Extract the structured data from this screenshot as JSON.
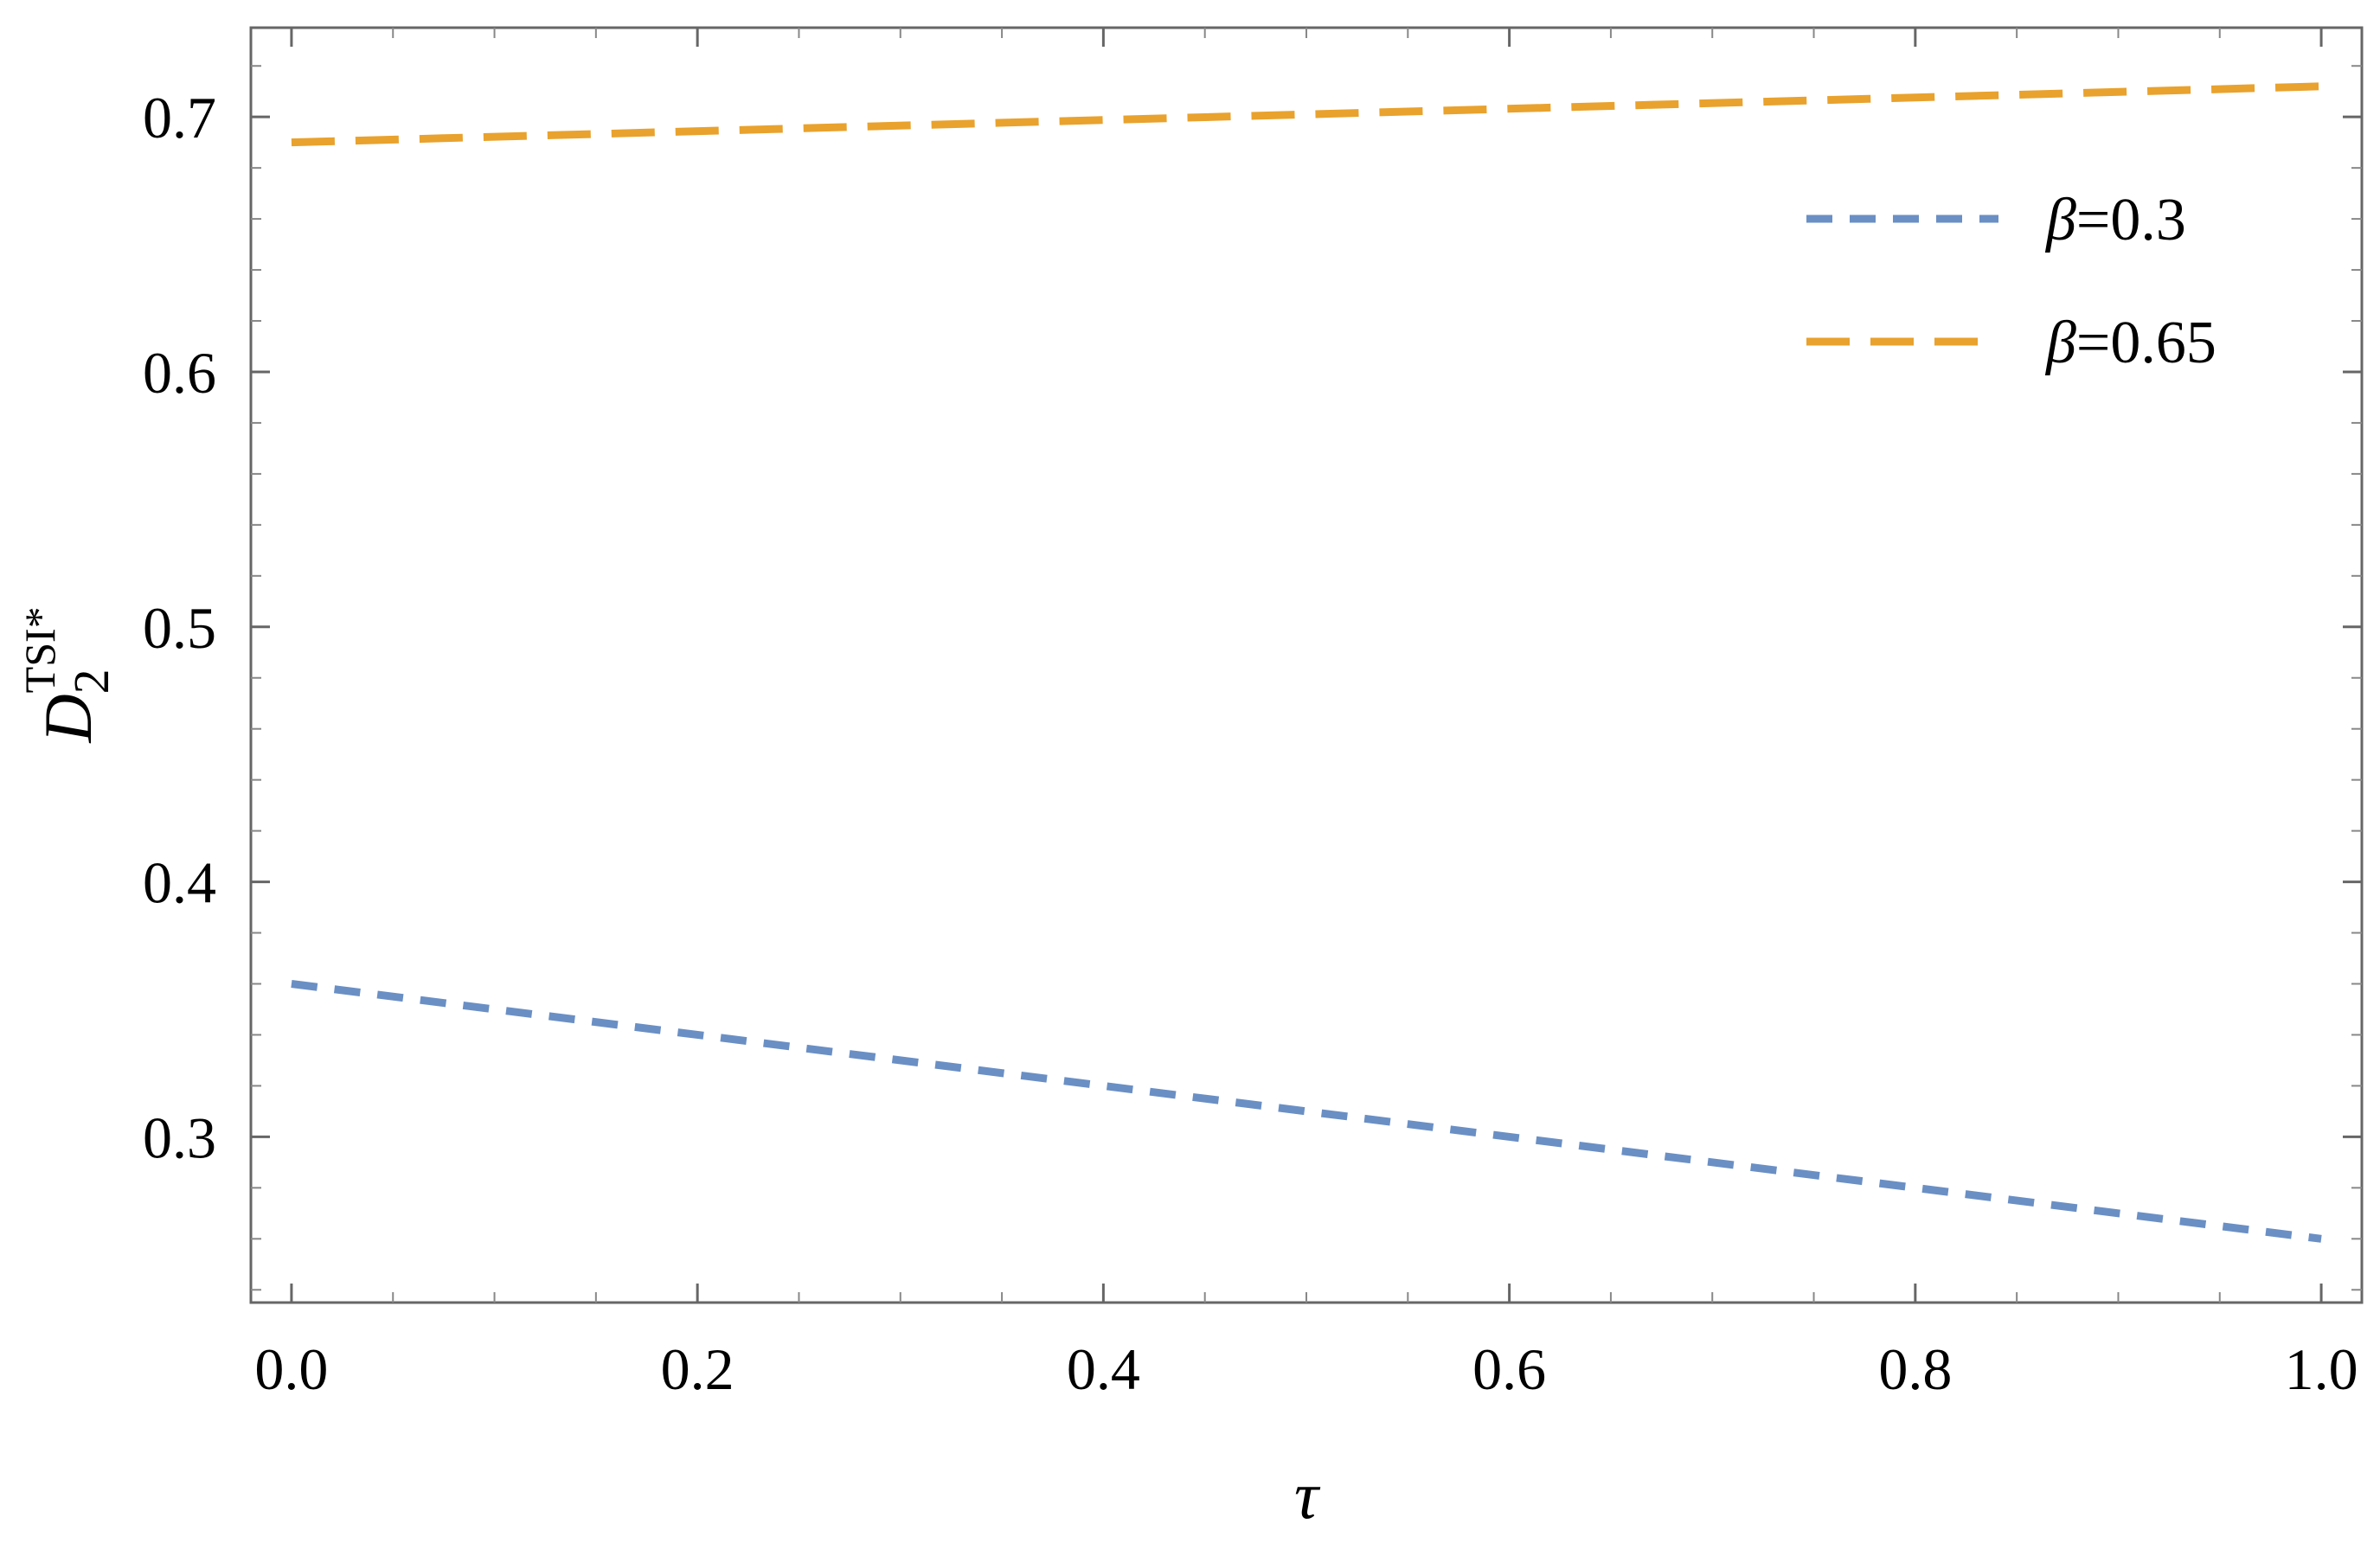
{
  "chart_data": {
    "type": "line",
    "xlabel": "τ",
    "ylabel": {
      "base": "D",
      "subscript": "2",
      "superscript": "TSI*"
    },
    "xlim": [
      -0.02,
      1.02
    ],
    "ylim": [
      0.235,
      0.735
    ],
    "x_ticks": [
      0.0,
      0.2,
      0.4,
      0.6,
      0.8,
      1.0
    ],
    "x_tick_labels": [
      "0.0",
      "0.2",
      "0.4",
      "0.6",
      "0.8",
      "1.0"
    ],
    "y_ticks": [
      0.3,
      0.4,
      0.5,
      0.6,
      0.7
    ],
    "y_tick_labels": [
      "0.3",
      "0.4",
      "0.5",
      "0.6",
      "0.7"
    ],
    "grid": false,
    "legend_position": "top-right",
    "series": [
      {
        "name": "β=0.3",
        "legend_symbol": "β",
        "legend_value": "=0.3",
        "color": "#6a8fc4",
        "dash": "short",
        "x": [
          0.0,
          1.0
        ],
        "y": [
          0.36,
          0.26
        ]
      },
      {
        "name": "β=0.65",
        "legend_symbol": "β",
        "legend_value": "=0.65",
        "color": "#e8a22d",
        "dash": "long",
        "x": [
          0.0,
          1.0
        ],
        "y": [
          0.69,
          0.712
        ]
      }
    ]
  }
}
